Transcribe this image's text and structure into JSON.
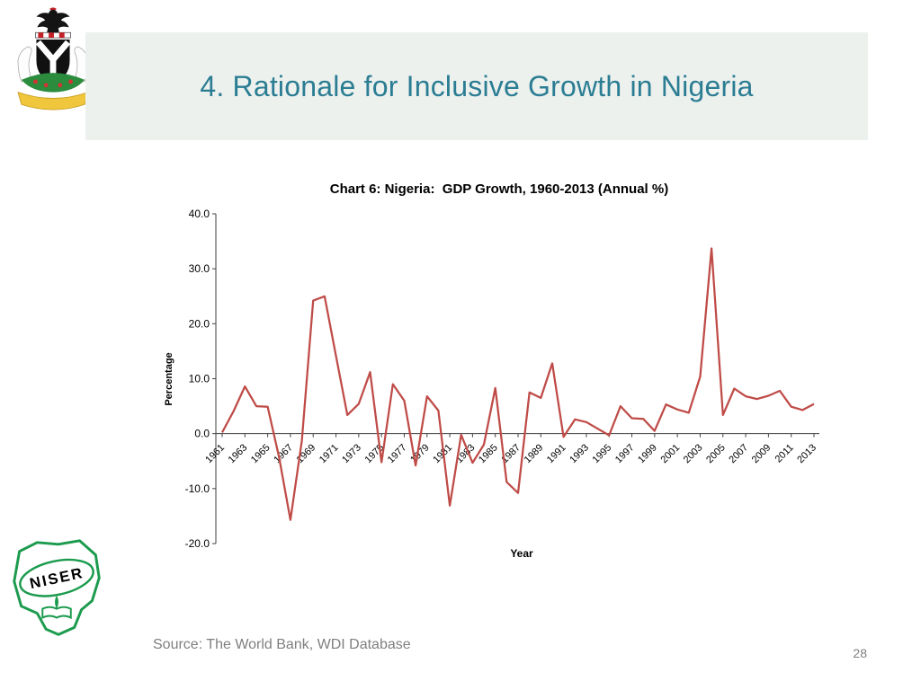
{
  "slide": {
    "title": "4. Rationale for Inclusive Growth in Nigeria",
    "source": "Source: The World Bank, WDI Database",
    "page_number": "28"
  },
  "logos": {
    "niser": "NISER"
  },
  "chart_data": {
    "type": "line",
    "title": "Chart 6: Nigeria:  GDP Growth, 1960-2013 (Annual %)",
    "xlabel": "Year",
    "ylabel": "Percentage",
    "ylim": [
      -20,
      40
    ],
    "grid": false,
    "legend": "none",
    "line_color": "#bf4b47",
    "yticks": [
      40,
      30,
      20,
      10,
      0,
      -10,
      -20
    ],
    "ytick_labels": [
      "40.0",
      "30.0",
      "20.0",
      "10.0",
      "0.0",
      "-10.0",
      "-20.0"
    ],
    "xtick_labels": [
      "1961",
      "1963",
      "1965",
      "1967",
      "1969",
      "1971",
      "1973",
      "1975",
      "1977",
      "1979",
      "1981",
      "1983",
      "1985",
      "1987",
      "1989",
      "1991",
      "1993",
      "1995",
      "1997",
      "1999",
      "2001",
      "2003",
      "2005",
      "2007",
      "2009",
      "2011",
      "2013"
    ],
    "x": [
      1961,
      1962,
      1963,
      1964,
      1965,
      1966,
      1967,
      1968,
      1969,
      1970,
      1971,
      1972,
      1973,
      1974,
      1975,
      1976,
      1977,
      1978,
      1979,
      1980,
      1981,
      1982,
      1983,
      1984,
      1985,
      1986,
      1987,
      1988,
      1989,
      1990,
      1991,
      1992,
      1993,
      1994,
      1995,
      1996,
      1997,
      1998,
      1999,
      2000,
      2001,
      2002,
      2003,
      2004,
      2005,
      2006,
      2007,
      2008,
      2009,
      2010,
      2011,
      2012,
      2013
    ],
    "values": [
      0.2,
      4.1,
      8.6,
      5.0,
      4.9,
      -4.3,
      -15.7,
      -1.3,
      24.2,
      25.0,
      14.2,
      3.4,
      5.4,
      11.2,
      -5.2,
      9.0,
      6.0,
      -5.8,
      6.8,
      4.2,
      -13.1,
      -0.2,
      -5.3,
      -2.0,
      8.3,
      -8.8,
      -10.8,
      7.5,
      6.5,
      12.8,
      -0.6,
      2.6,
      2.1,
      0.9,
      -0.3,
      5.0,
      2.8,
      2.7,
      0.5,
      5.3,
      4.4,
      3.8,
      10.4,
      33.7,
      3.4,
      8.2,
      6.8,
      6.3,
      6.9,
      7.8,
      4.9,
      4.3,
      5.4
    ]
  }
}
